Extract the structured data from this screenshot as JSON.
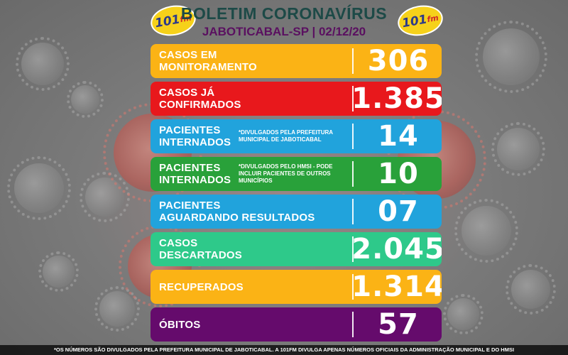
{
  "header": {
    "title": "BOLETIM CORONAVÍRUS",
    "subtitle": "JABOTICABAL-SP | 02/12/20",
    "logo_text": "101",
    "logo_suffix": "fm"
  },
  "colors": {
    "orange": "#fbb315",
    "red": "#e8181c",
    "blue": "#21a3dc",
    "green": "#29a13a",
    "teal": "#2ec98a",
    "purple": "#650b6c"
  },
  "rows": [
    {
      "label_line1": "CASOS EM",
      "label_line2": "MONITORAMENTO",
      "note": "",
      "value": "306",
      "color": "#fbb315"
    },
    {
      "label_line1": "CASOS JÁ",
      "label_line2": "CONFIRMADOS",
      "note": "",
      "value": "1.385",
      "color": "#e8181c"
    },
    {
      "label_line1": "PACIENTES",
      "label_line2": "INTERNADOS",
      "note": "*DIVULGADOS PELA PREFEITURA MUNICIPAL DE JABOTICABAL",
      "value": "14",
      "color": "#21a3dc"
    },
    {
      "label_line1": "PACIENTES",
      "label_line2": "INTERNADOS",
      "note": "*DIVULGADOS PELO HMSI - PODE INCLUIR PACIENTES DE OUTROS MUNICÍPIOS",
      "value": "10",
      "color": "#29a13a"
    },
    {
      "label_line1": "PACIENTES",
      "label_line2": "AGUARDANDO RESULTADOS",
      "note": "",
      "value": "07",
      "color": "#21a3dc"
    },
    {
      "label_line1": "CASOS",
      "label_line2": "DESCARTADOS",
      "note": "",
      "value": "2.045",
      "color": "#2ec98a"
    },
    {
      "label_line1": "RECUPERADOS",
      "label_line2": "",
      "note": "",
      "value": "1.314",
      "color": "#fbb315"
    },
    {
      "label_line1": "ÓBITOS",
      "label_line2": "",
      "note": "",
      "value": "57",
      "color": "#650b6c"
    }
  ],
  "footer": {
    "text": "*OS NÚMEROS SÃO DIVULGADOS PELA PREFEITURA MUNICIPAL DE JABOTICABAL. A 101FM DIVULGA APENAS NÚMEROS OFICIAIS DA ADMINISTRAÇÃO MUNICIPAL E DO HMSI"
  }
}
